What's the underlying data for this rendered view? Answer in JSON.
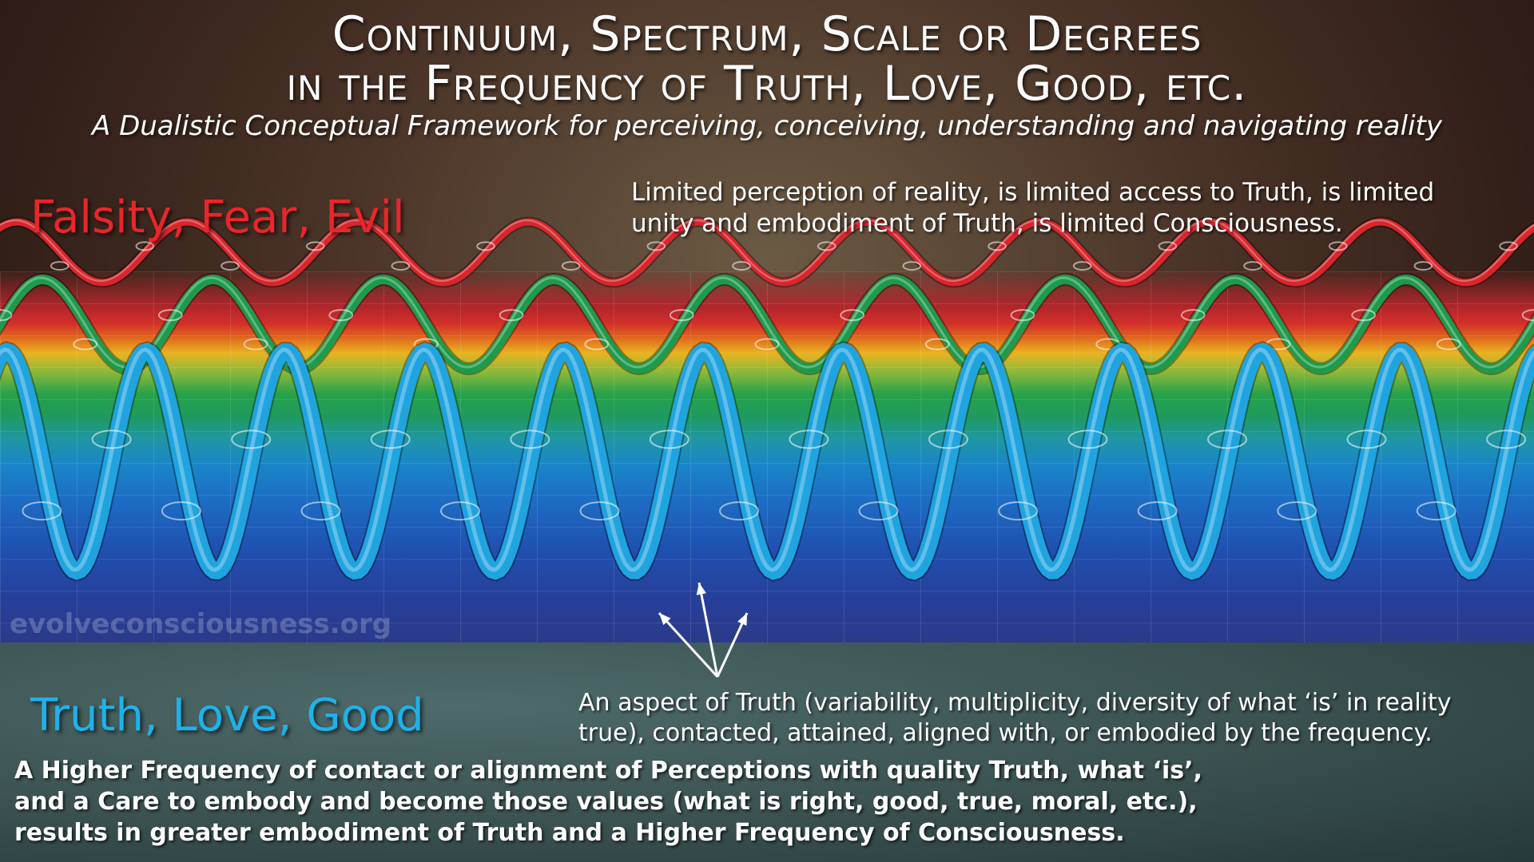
{
  "title": {
    "line1": "Continuum, Spectrum, Scale or Degrees",
    "line2": "in the Frequency of Truth, Love, Good, etc.",
    "subtitle": "A Dualistic Conceptual Framework for perceiving, conceiving, understanding and navigating reality"
  },
  "top": {
    "label": "Falsity, Fear, Evil",
    "description": [
      "Limited perception of reality, is limited access to Truth, is limited",
      "unity and embodiment of Truth, is limited Consciousness."
    ]
  },
  "watermark": "evolveconsciousness.org",
  "bottom": {
    "label": "Truth, Love, Good",
    "aspect": [
      "An aspect of Truth (variability, multiplicity, diversity of what ‘is’ in reality",
      "true), contacted, attained, aligned with, or embodied by the frequency."
    ],
    "description": [
      "A Higher Frequency of contact or alignment of Perceptions with quality Truth, what ‘is’,",
      "and a Care to embody and become those values (what is right, good, true, moral, etc.),",
      "results in greater embodiment of Truth and a Higher Frequency of Consciousness."
    ]
  },
  "waves": [
    {
      "name": "low-frequency-wave",
      "color": "#d8262c",
      "cycles": 9
    },
    {
      "name": "mid-frequency-wave",
      "color": "#1e9a4c",
      "cycles": 9
    },
    {
      "name": "high-frequency-wave",
      "color": "#1fa4e0",
      "cycles": 11
    }
  ]
}
